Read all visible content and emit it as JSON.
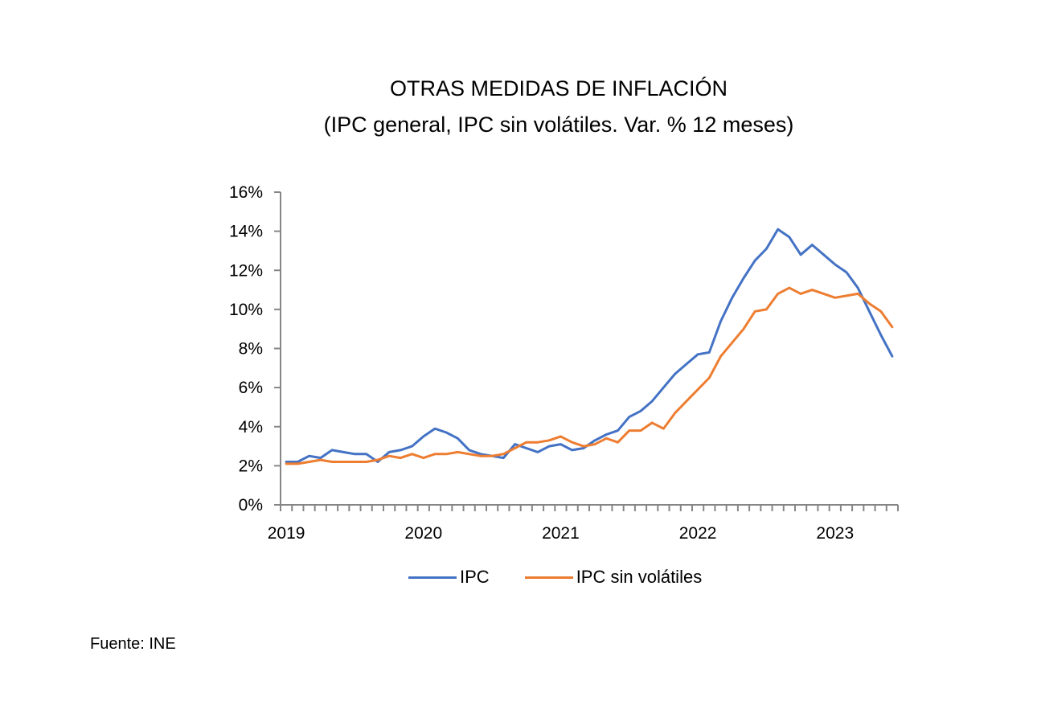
{
  "source_note": "Fuente: INE",
  "chart_data": {
    "type": "line",
    "title": "OTRAS MEDIDAS DE INFLACIÓN",
    "subtitle": "(IPC general, IPC sin volátiles.  Var. % 12 meses)",
    "xlabel": "",
    "ylabel": "",
    "ylim": [
      0,
      16
    ],
    "y_ticks": [
      0,
      2,
      4,
      6,
      8,
      10,
      12,
      14,
      16
    ],
    "y_tick_labels": [
      "0%",
      "2%",
      "4%",
      "6%",
      "8%",
      "10%",
      "12%",
      "14%",
      "16%"
    ],
    "x_start": "2019-01",
    "x_end": "2023-06",
    "x_tick_labels": [
      {
        "label": "2019",
        "month_index": 0
      },
      {
        "label": "2020",
        "month_index": 12
      },
      {
        "label": "2021",
        "month_index": 24
      },
      {
        "label": "2022",
        "month_index": 36
      },
      {
        "label": "2023",
        "month_index": 48
      }
    ],
    "grid": false,
    "legend_position": "bottom",
    "series": [
      {
        "name": "IPC",
        "color": "#4472C4",
        "values": [
          2.2,
          2.2,
          2.5,
          2.4,
          2.8,
          2.7,
          2.6,
          2.6,
          2.2,
          2.7,
          2.8,
          3.0,
          3.5,
          3.9,
          3.7,
          3.4,
          2.8,
          2.6,
          2.5,
          2.4,
          3.1,
          2.9,
          2.7,
          3.0,
          3.1,
          2.8,
          2.9,
          3.3,
          3.6,
          3.8,
          4.5,
          4.8,
          5.3,
          6.0,
          6.7,
          7.2,
          7.7,
          7.8,
          9.4,
          10.6,
          11.6,
          12.5,
          13.1,
          14.1,
          13.7,
          12.8,
          13.3,
          12.8,
          12.3,
          11.9,
          11.1,
          9.9,
          8.7,
          7.6
        ]
      },
      {
        "name": "IPC sin volátiles",
        "color": "#ED7D31",
        "values": [
          2.1,
          2.1,
          2.2,
          2.3,
          2.2,
          2.2,
          2.2,
          2.2,
          2.3,
          2.5,
          2.4,
          2.6,
          2.4,
          2.6,
          2.6,
          2.7,
          2.6,
          2.5,
          2.5,
          2.6,
          2.9,
          3.2,
          3.2,
          3.3,
          3.5,
          3.2,
          3.0,
          3.1,
          3.4,
          3.2,
          3.8,
          3.8,
          4.2,
          3.9,
          4.7,
          5.3,
          5.9,
          6.5,
          7.6,
          8.3,
          9.0,
          9.9,
          10.0,
          10.8,
          11.1,
          10.8,
          11.0,
          10.8,
          10.6,
          10.7,
          10.8,
          10.3,
          9.9,
          9.1
        ]
      }
    ]
  }
}
